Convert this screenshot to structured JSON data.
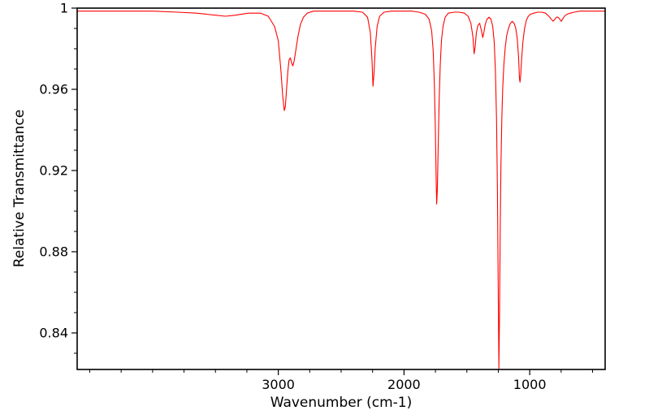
{
  "chart_data": {
    "type": "line",
    "title": "",
    "xlabel": "Wavenumber (cm-1)",
    "ylabel": "Relative Transmittance",
    "x_reversed": true,
    "xlim": [
      4600,
      400
    ],
    "ylim": [
      0.822,
      1.0
    ],
    "grid": false,
    "legend": "none",
    "line_color": "#ff0000",
    "frame_color": "#000000",
    "background": "#ffffff",
    "x_major_ticks": [
      3000,
      2000,
      1000
    ],
    "x_tick_labels": [
      "3000",
      "2000",
      "1000"
    ],
    "x_minor_ticks": [
      4500,
      4250,
      4000,
      3750,
      3500,
      3250,
      2750,
      2500,
      2250,
      1750,
      1500,
      1250,
      750,
      500
    ],
    "y_major_ticks": [
      0.84,
      0.88,
      0.92,
      0.96,
      1
    ],
    "y_tick_labels": [
      "0.84",
      "0.88",
      "0.92",
      "0.96",
      "1"
    ],
    "y_minor_ticks": [
      0.83,
      0.85,
      0.86,
      0.87,
      0.89,
      0.9,
      0.91,
      0.93,
      0.94,
      0.95,
      0.97,
      0.98,
      0.99
    ],
    "peaks": [
      {
        "wavenumber": 2952,
        "transmittance": 0.95
      },
      {
        "wavenumber": 2884,
        "transmittance": 0.972
      },
      {
        "wavenumber": 2247,
        "transmittance": 0.961
      },
      {
        "wavenumber": 1740,
        "transmittance": 0.903
      },
      {
        "wavenumber": 1442,
        "transmittance": 0.977
      },
      {
        "wavenumber": 1374,
        "transmittance": 0.985
      },
      {
        "wavenumber": 1245,
        "transmittance": 0.822
      },
      {
        "wavenumber": 1078,
        "transmittance": 0.963
      },
      {
        "wavenumber": 814,
        "transmittance": 0.993
      },
      {
        "wavenumber": 749,
        "transmittance": 0.993
      }
    ],
    "series": [
      {
        "name": "spectrum",
        "points": [
          [
            4600,
            0.9985
          ],
          [
            4300,
            0.9985
          ],
          [
            4000,
            0.9985
          ],
          [
            3800,
            0.998
          ],
          [
            3650,
            0.9975
          ],
          [
            3500,
            0.9965
          ],
          [
            3420,
            0.996
          ],
          [
            3340,
            0.9965
          ],
          [
            3240,
            0.9975
          ],
          [
            3140,
            0.9975
          ],
          [
            3080,
            0.996
          ],
          [
            3030,
            0.991
          ],
          [
            3000,
            0.984
          ],
          [
            2980,
            0.97
          ],
          [
            2965,
            0.957
          ],
          [
            2952,
            0.9495
          ],
          [
            2944,
            0.9515
          ],
          [
            2934,
            0.96
          ],
          [
            2924,
            0.969
          ],
          [
            2914,
            0.9745
          ],
          [
            2904,
            0.9755
          ],
          [
            2894,
            0.973
          ],
          [
            2884,
            0.9715
          ],
          [
            2874,
            0.974
          ],
          [
            2860,
            0.9795
          ],
          [
            2844,
            0.986
          ],
          [
            2824,
            0.992
          ],
          [
            2800,
            0.9955
          ],
          [
            2770,
            0.9975
          ],
          [
            2720,
            0.9985
          ],
          [
            2600,
            0.9985
          ],
          [
            2480,
            0.9985
          ],
          [
            2400,
            0.9985
          ],
          [
            2330,
            0.998
          ],
          [
            2290,
            0.9955
          ],
          [
            2268,
            0.988
          ],
          [
            2255,
            0.975
          ],
          [
            2247,
            0.9615
          ],
          [
            2239,
            0.9675
          ],
          [
            2229,
            0.98
          ],
          [
            2214,
            0.991
          ],
          [
            2194,
            0.996
          ],
          [
            2158,
            0.998
          ],
          [
            2100,
            0.9985
          ],
          [
            2000,
            0.9985
          ],
          [
            1940,
            0.9985
          ],
          [
            1880,
            0.998
          ],
          [
            1830,
            0.997
          ],
          [
            1800,
            0.9945
          ],
          [
            1780,
            0.989
          ],
          [
            1768,
            0.979
          ],
          [
            1758,
            0.962
          ],
          [
            1750,
            0.938
          ],
          [
            1744,
            0.915
          ],
          [
            1740,
            0.9035
          ],
          [
            1735,
            0.9105
          ],
          [
            1728,
            0.932
          ],
          [
            1720,
            0.9555
          ],
          [
            1712,
            0.972
          ],
          [
            1702,
            0.984
          ],
          [
            1690,
            0.991
          ],
          [
            1672,
            0.9955
          ],
          [
            1648,
            0.9975
          ],
          [
            1600,
            0.998
          ],
          [
            1558,
            0.998
          ],
          [
            1520,
            0.9975
          ],
          [
            1490,
            0.996
          ],
          [
            1468,
            0.9925
          ],
          [
            1452,
            0.986
          ],
          [
            1442,
            0.9775
          ],
          [
            1434,
            0.981
          ],
          [
            1424,
            0.988
          ],
          [
            1412,
            0.9915
          ],
          [
            1398,
            0.9925
          ],
          [
            1384,
            0.989
          ],
          [
            1374,
            0.9855
          ],
          [
            1366,
            0.9875
          ],
          [
            1354,
            0.992
          ],
          [
            1340,
            0.9945
          ],
          [
            1324,
            0.9955
          ],
          [
            1308,
            0.9945
          ],
          [
            1294,
            0.991
          ],
          [
            1282,
            0.983
          ],
          [
            1272,
            0.968
          ],
          [
            1264,
            0.945
          ],
          [
            1257,
            0.91
          ],
          [
            1251,
            0.865
          ],
          [
            1245,
            0.8225
          ],
          [
            1240,
            0.85
          ],
          [
            1235,
            0.89
          ],
          [
            1229,
            0.922
          ],
          [
            1222,
            0.9455
          ],
          [
            1214,
            0.9615
          ],
          [
            1205,
            0.9725
          ],
          [
            1195,
            0.9805
          ],
          [
            1183,
            0.9865
          ],
          [
            1169,
            0.99
          ],
          [
            1154,
            0.9925
          ],
          [
            1139,
            0.9935
          ],
          [
            1124,
            0.9925
          ],
          [
            1111,
            0.99
          ],
          [
            1099,
            0.985
          ],
          [
            1089,
            0.976
          ],
          [
            1082,
            0.9655
          ],
          [
            1077,
            0.9635
          ],
          [
            1072,
            0.9665
          ],
          [
            1064,
            0.975
          ],
          [
            1054,
            0.9835
          ],
          [
            1041,
            0.99
          ],
          [
            1027,
            0.994
          ],
          [
            1011,
            0.996
          ],
          [
            994,
            0.997
          ],
          [
            968,
            0.9975
          ],
          [
            938,
            0.998
          ],
          [
            904,
            0.998
          ],
          [
            874,
            0.9975
          ],
          [
            848,
            0.996
          ],
          [
            828,
            0.9945
          ],
          [
            814,
            0.9935
          ],
          [
            800,
            0.9945
          ],
          [
            788,
            0.9955
          ],
          [
            774,
            0.9955
          ],
          [
            761,
            0.9945
          ],
          [
            749,
            0.9935
          ],
          [
            739,
            0.9945
          ],
          [
            724,
            0.996
          ],
          [
            704,
            0.997
          ],
          [
            678,
            0.9975
          ],
          [
            648,
            0.998
          ],
          [
            600,
            0.9985
          ],
          [
            548,
            0.9985
          ],
          [
            500,
            0.9985
          ],
          [
            450,
            0.9985
          ],
          [
            400,
            0.9985
          ]
        ]
      }
    ]
  }
}
